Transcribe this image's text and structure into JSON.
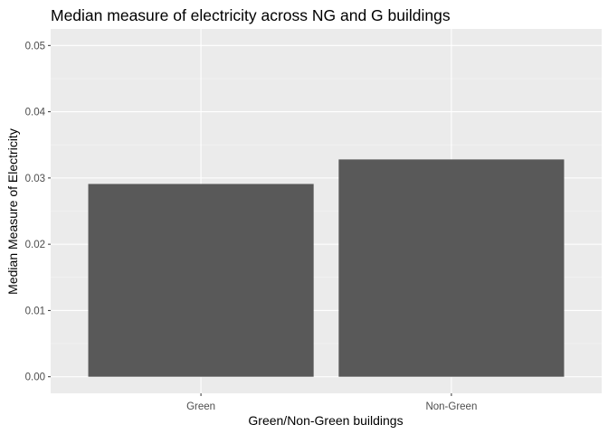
{
  "chart_data": {
    "type": "bar",
    "title": "Median measure of electricity across NG and G buildings",
    "xlabel": "Green/Non-Green buildings",
    "ylabel": "Median Measure of Electricity",
    "categories": [
      "Green",
      "Non-Green"
    ],
    "values": [
      0.0291,
      0.0328
    ],
    "ylim": [
      -0.0025,
      0.0525
    ],
    "yticks": [
      0.0,
      0.01,
      0.02,
      0.03,
      0.04,
      0.05
    ],
    "ytick_labels": [
      "0.00",
      "0.01",
      "0.02",
      "0.03",
      "0.04",
      "0.05"
    ],
    "grid": true,
    "legend": "none",
    "colors": {
      "bar": "#595959",
      "panel_background": "#ebebeb",
      "grid_major": "#ffffff",
      "grid_minor": "#f5f5f5",
      "tick_text": "#4d4d4d",
      "tick_mark": "#333333"
    }
  }
}
